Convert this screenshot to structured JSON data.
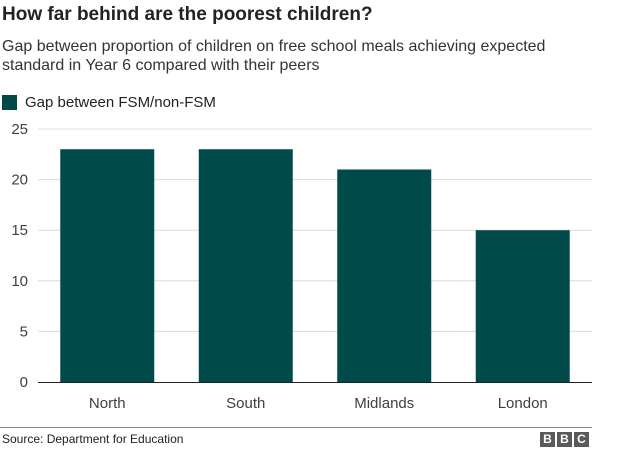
{
  "header": {
    "title": "How far behind are the poorest children?",
    "subtitle": "Gap between proportion of children on free school meals achieving expected standard in Year 6 compared with their peers"
  },
  "legend": {
    "label": "Gap between FSM/non-FSM",
    "color": "#004b49"
  },
  "chart_data": {
    "type": "bar",
    "categories": [
      "North",
      "South",
      "Midlands",
      "London"
    ],
    "series": [
      {
        "name": "Gap between FSM/non-FSM",
        "values": [
          23,
          23,
          21,
          15
        ]
      }
    ],
    "ylim": [
      0,
      25
    ],
    "yticks": [
      0,
      5,
      10,
      15,
      20,
      25
    ],
    "grid": true,
    "legend_position": "top-left",
    "bar_color": "#004b49"
  },
  "footer": {
    "source": "Source: Department for Education",
    "logo": [
      "B",
      "B",
      "C"
    ]
  }
}
